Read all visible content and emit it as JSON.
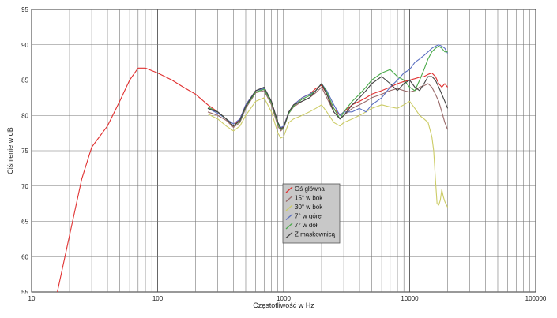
{
  "chart_data": {
    "type": "line",
    "xscale": "log",
    "xlim": [
      10,
      100000
    ],
    "ylim": [
      55,
      95
    ],
    "grid": true,
    "xlabel": "Częstotliwość w Hz",
    "ylabel": "Ciśnienie w dB",
    "x_ticks": [
      "10",
      "100",
      "1000",
      "10000",
      "100000"
    ],
    "y_ticks": [
      "55",
      "60",
      "65",
      "70",
      "75",
      "80",
      "85",
      "90",
      "95"
    ],
    "legend_position": "center",
    "series": [
      {
        "name": "Oś główna",
        "color": "#e03030",
        "x": [
          16,
          20,
          25,
          30,
          40,
          50,
          60,
          70,
          80,
          100,
          130,
          160,
          200,
          250,
          300,
          350,
          400,
          450,
          500,
          600,
          700,
          800,
          900,
          950,
          1000,
          1100,
          1200,
          1400,
          1600,
          1800,
          2000,
          2200,
          2500,
          2800,
          3000,
          3500,
          4000,
          4500,
          5000,
          6000,
          7000,
          8000,
          9000,
          10000,
          11000,
          12000,
          13000,
          14000,
          15000,
          16000,
          17000,
          18000,
          19000,
          20000
        ],
        "y": [
          55,
          63,
          71,
          75.5,
          78.5,
          82,
          85,
          86.7,
          86.7,
          86,
          85,
          84,
          83,
          81.5,
          80.5,
          79.5,
          78.5,
          79.5,
          81.5,
          83.5,
          83.8,
          82,
          79,
          78,
          78.5,
          80.5,
          81.5,
          82.5,
          83,
          83.8,
          84.3,
          83,
          81,
          80,
          80.5,
          81.5,
          82,
          82.5,
          83,
          83.5,
          84,
          84.5,
          84.8,
          85,
          85.2,
          85.4,
          85.5,
          85.8,
          86,
          85.5,
          84.5,
          84,
          84.5,
          84
        ]
      },
      {
        "name": "15° w bok",
        "color": "#9a6a6a",
        "x": [
          250,
          300,
          350,
          400,
          450,
          500,
          600,
          700,
          800,
          900,
          950,
          1000,
          1100,
          1200,
          1400,
          1600,
          1800,
          2000,
          2200,
          2500,
          2800,
          3000,
          3500,
          4000,
          4500,
          5000,
          6000,
          7000,
          8000,
          9000,
          10000,
          11000,
          12000,
          13000,
          14000,
          15000,
          16000,
          17000,
          18000,
          19000,
          20000
        ],
        "y": [
          80.5,
          80,
          79.3,
          78.3,
          79,
          81,
          83.2,
          83.5,
          81.5,
          78.5,
          77.8,
          78.2,
          80.3,
          81.2,
          82,
          82.5,
          83.2,
          84,
          82.5,
          80.5,
          79.5,
          80,
          81,
          81.5,
          82,
          82.5,
          83,
          83.5,
          83.8,
          83.5,
          83.3,
          83.5,
          84,
          84.2,
          84.5,
          84,
          83,
          82,
          80.5,
          79,
          78
        ]
      },
      {
        "name": "30° w bok",
        "color": "#cccc66",
        "x": [
          250,
          300,
          350,
          400,
          450,
          500,
          600,
          700,
          800,
          900,
          950,
          1000,
          1100,
          1200,
          1400,
          1600,
          1800,
          2000,
          2200,
          2500,
          2800,
          3000,
          3500,
          4000,
          4500,
          5000,
          6000,
          7000,
          8000,
          9000,
          10000,
          11000,
          12000,
          13000,
          14000,
          15000,
          15500,
          16000,
          16500,
          17000,
          17500,
          18000,
          18500,
          19000,
          20000
        ],
        "y": [
          80.2,
          79.5,
          78.5,
          77.8,
          78.5,
          80,
          82,
          82.5,
          80.5,
          77.5,
          76.8,
          77,
          79,
          79.5,
          80,
          80.5,
          81,
          81.5,
          80.5,
          79,
          78.5,
          79,
          79.5,
          80,
          80.5,
          81,
          81.5,
          81.2,
          81,
          81.5,
          82,
          81,
          80,
          79.5,
          79,
          77,
          75,
          71,
          67.5,
          67.3,
          68,
          69.5,
          68.5,
          67.8,
          67
        ]
      },
      {
        "name": "7° w górę",
        "color": "#5a6fc0",
        "x": [
          250,
          300,
          350,
          400,
          450,
          500,
          600,
          700,
          800,
          900,
          950,
          1000,
          1100,
          1200,
          1400,
          1600,
          1800,
          2000,
          2200,
          2500,
          2800,
          3000,
          3500,
          4000,
          4500,
          5000,
          6000,
          7000,
          8000,
          9000,
          10000,
          11000,
          12000,
          13000,
          14000,
          15000,
          16000,
          17000,
          18000,
          19000,
          20000
        ],
        "y": [
          81,
          80.3,
          79.5,
          78.8,
          79.5,
          81.5,
          83.5,
          83.8,
          82,
          79,
          78.3,
          78.5,
          80.5,
          81.5,
          82.5,
          83,
          83.5,
          84.5,
          83.5,
          81.5,
          80,
          80.5,
          80.5,
          81,
          80.5,
          81.5,
          82.5,
          84,
          85,
          86,
          86.5,
          87.5,
          88,
          88.5,
          89,
          89.5,
          89.8,
          90,
          89.8,
          89.5,
          88.8
        ]
      },
      {
        "name": "7° w dół",
        "color": "#4aaa4a",
        "x": [
          250,
          300,
          350,
          400,
          450,
          500,
          600,
          700,
          800,
          900,
          950,
          1000,
          1100,
          1200,
          1400,
          1600,
          1800,
          2000,
          2200,
          2500,
          2800,
          3000,
          3500,
          4000,
          4500,
          5000,
          6000,
          7000,
          8000,
          9000,
          10000,
          11000,
          12000,
          13000,
          14000,
          15000,
          16000,
          17000,
          18000,
          19000,
          20000
        ],
        "y": [
          81.2,
          80.5,
          79.5,
          78.5,
          79.2,
          81.2,
          83.3,
          83.7,
          81.8,
          78.8,
          78,
          78.3,
          80.3,
          81.3,
          82.3,
          82.8,
          83.5,
          84.5,
          83.3,
          81,
          79.5,
          80.5,
          82,
          83,
          84,
          85,
          86,
          86.5,
          85.5,
          85,
          84,
          83.5,
          85,
          86.5,
          88,
          89,
          89.5,
          89.8,
          89.5,
          89,
          89
        ]
      },
      {
        "name": "Z maskownicą",
        "color": "#444444",
        "x": [
          250,
          300,
          350,
          400,
          450,
          500,
          600,
          700,
          800,
          900,
          950,
          1000,
          1100,
          1200,
          1400,
          1600,
          1800,
          2000,
          2200,
          2500,
          2800,
          3000,
          3500,
          4000,
          4500,
          5000,
          6000,
          7000,
          8000,
          9000,
          10000,
          11000,
          12000,
          13000,
          14000,
          15000,
          16000,
          17000,
          18000,
          19000,
          20000
        ],
        "y": [
          81,
          80.5,
          79.5,
          78.5,
          79.3,
          81.3,
          83.5,
          84,
          82,
          79,
          78.2,
          78.3,
          80.5,
          81.5,
          82,
          82.5,
          83.5,
          84.5,
          83,
          80.5,
          79.5,
          80,
          81.5,
          82.5,
          83.5,
          84.5,
          85.5,
          84.5,
          83.5,
          84.5,
          85,
          84,
          83.5,
          84.5,
          85.5,
          85.5,
          85,
          84,
          83,
          82,
          81
        ]
      }
    ]
  }
}
